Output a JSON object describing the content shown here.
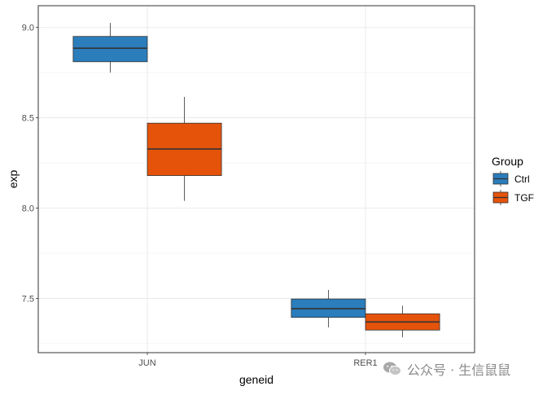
{
  "chart_data": {
    "type": "boxplot",
    "categories": [
      "JUN",
      "RER1"
    ],
    "xlabel": "geneid",
    "ylabel": "exp",
    "ylim": [
      7.2,
      9.12
    ],
    "yticks": [
      7.5,
      8.0,
      8.5,
      9.0
    ],
    "ytick_labels": [
      "7.5",
      "8.0",
      "8.5",
      "9.0"
    ],
    "grid": true,
    "legend_position": "right",
    "legend_title": "Group",
    "series": [
      {
        "name": "Ctrl",
        "color": "#2b7dbc",
        "boxes": [
          {
            "category": "JUN",
            "whisker_low": 8.75,
            "q1": 8.81,
            "median": 8.885,
            "q3": 8.95,
            "whisker_high": 9.025
          },
          {
            "category": "RER1",
            "whisker_low": 7.34,
            "q1": 7.395,
            "median": 7.443,
            "q3": 7.497,
            "whisker_high": 7.547
          }
        ]
      },
      {
        "name": "TGF",
        "color": "#e5530b",
        "boxes": [
          {
            "category": "JUN",
            "whisker_low": 8.04,
            "q1": 8.18,
            "median": 8.327,
            "q3": 8.47,
            "whisker_high": 8.615
          },
          {
            "category": "RER1",
            "whisker_low": 7.285,
            "q1": 7.325,
            "median": 7.37,
            "q3": 7.415,
            "whisker_high": 7.46
          }
        ]
      }
    ]
  },
  "watermark": {
    "text": "公众号 · 生信鼠鼠",
    "icon": "wechat-icon"
  }
}
